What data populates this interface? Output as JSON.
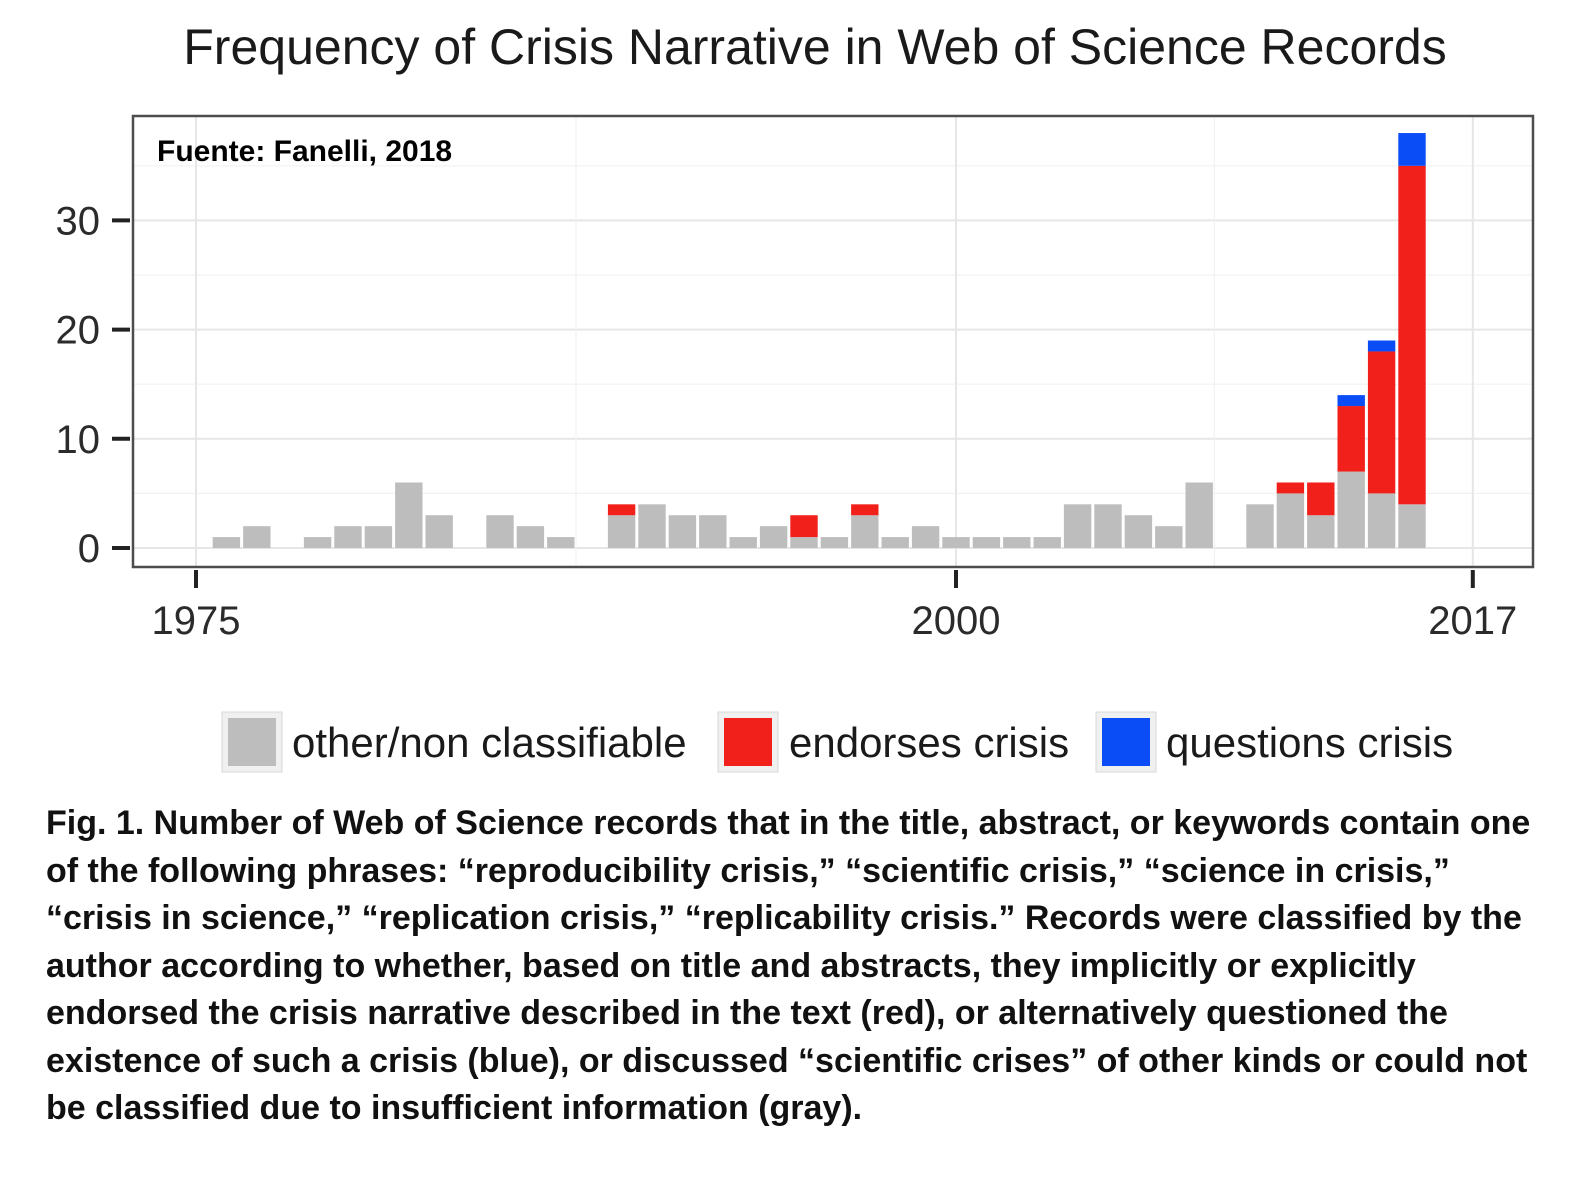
{
  "chart_data": {
    "type": "bar",
    "stacked": true,
    "title": "Frequency of Crisis Narrative in Web of Science Records",
    "annotation": "Fuente: Fanelli, 2018",
    "xlabel": "",
    "ylabel": "",
    "x_ticks": [
      1975,
      2000,
      2017
    ],
    "y_ticks": [
      0,
      10,
      20,
      30
    ],
    "ylim": [
      0,
      38
    ],
    "xlim": [
      1975,
      2017
    ],
    "grid": true,
    "legend_position": "bottom",
    "x": [
      1976,
      1977,
      1979,
      1980,
      1981,
      1982,
      1983,
      1985,
      1986,
      1987,
      1989,
      1990,
      1991,
      1992,
      1993,
      1994,
      1995,
      1996,
      1997,
      1998,
      1999,
      2000,
      2001,
      2002,
      2003,
      2004,
      2005,
      2006,
      2007,
      2008,
      2010,
      2011,
      2012,
      2013,
      2014,
      2015,
      2016
    ],
    "series": [
      {
        "name": "other/non classifiable",
        "color": "#bdbdbd",
        "values": [
          1,
          2,
          1,
          2,
          2,
          6,
          3,
          3,
          2,
          1,
          3,
          4,
          3,
          3,
          1,
          2,
          1,
          1,
          3,
          1,
          2,
          1,
          1,
          1,
          1,
          4,
          4,
          3,
          2,
          6,
          4,
          5,
          3,
          7,
          5,
          4,
          0
        ]
      },
      {
        "name": "endorses crisis",
        "color": "#f2201a",
        "values": [
          0,
          0,
          0,
          0,
          0,
          0,
          0,
          0,
          0,
          0,
          1,
          0,
          0,
          0,
          0,
          0,
          2,
          0,
          1,
          0,
          0,
          0,
          0,
          0,
          0,
          0,
          0,
          0,
          0,
          0,
          0,
          1,
          3,
          6,
          13,
          31,
          0
        ]
      },
      {
        "name": "questions crisis",
        "color": "#0a4cf5",
        "values": [
          0,
          0,
          0,
          0,
          0,
          0,
          0,
          0,
          0,
          0,
          0,
          0,
          0,
          0,
          0,
          0,
          0,
          0,
          0,
          0,
          0,
          0,
          0,
          0,
          0,
          0,
          0,
          0,
          0,
          0,
          0,
          0,
          0,
          1,
          1,
          3,
          0
        ]
      }
    ]
  },
  "caption": "Fig. 1.  Number of Web of Science records that in the title, abstract, or keywords contain one of the following phrases: “reproducibility crisis,” “scientific crisis,” “science in crisis,” “crisis in science,” “replication crisis,” “replicability crisis.” Records were classified by the author according to whether, based on title and abstracts, they implicitly or explicitly endorsed the crisis narrative described in the text (red), or alternatively questioned the existence of such a crisis (blue), or discussed “scientific crises” of other kinds or could not be classified due to insufficient information (gray)."
}
